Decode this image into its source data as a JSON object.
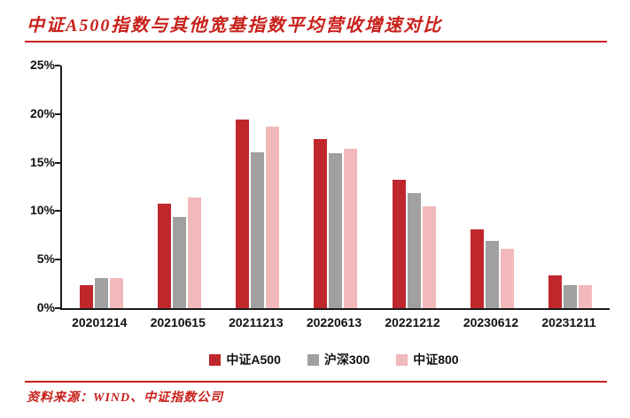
{
  "title": "中证A500指数与其他宽基指数平均营收增速对比",
  "source": "资料来源：WIND、中证指数公司",
  "colors": {
    "accent_red": "#c8201a",
    "series_a500": "#c0272d",
    "series_hs300": "#a0a0a0",
    "series_zz800": "#f2b9bb",
    "axis": "#1a1a1a"
  },
  "chart_data": {
    "type": "bar",
    "title": "中证A500指数与其他宽基指数平均营收增速对比",
    "categories": [
      "20201214",
      "20210615",
      "20211213",
      "20220613",
      "20221212",
      "20230612",
      "20231211"
    ],
    "series": [
      {
        "name": "中证A500",
        "key": "csi-a500",
        "color": "#c0272d",
        "values": [
          2.4,
          10.8,
          19.4,
          17.4,
          13.2,
          8.1,
          3.4
        ]
      },
      {
        "name": "沪深300",
        "key": "hs300",
        "color": "#a0a0a0",
        "values": [
          3.1,
          9.4,
          16.1,
          16.0,
          11.9,
          6.9,
          2.4
        ]
      },
      {
        "name": "中证800",
        "key": "csi-800",
        "color": "#f2b9bb",
        "values": [
          3.1,
          11.4,
          18.7,
          16.4,
          10.5,
          6.1,
          2.4
        ]
      }
    ],
    "xlabel": "",
    "ylabel": "",
    "ylim": [
      0,
      25
    ],
    "yticks": [
      "0%",
      "5%",
      "10%",
      "15%",
      "20%",
      "25%"
    ],
    "grid": false,
    "legend_position": "bottom"
  }
}
